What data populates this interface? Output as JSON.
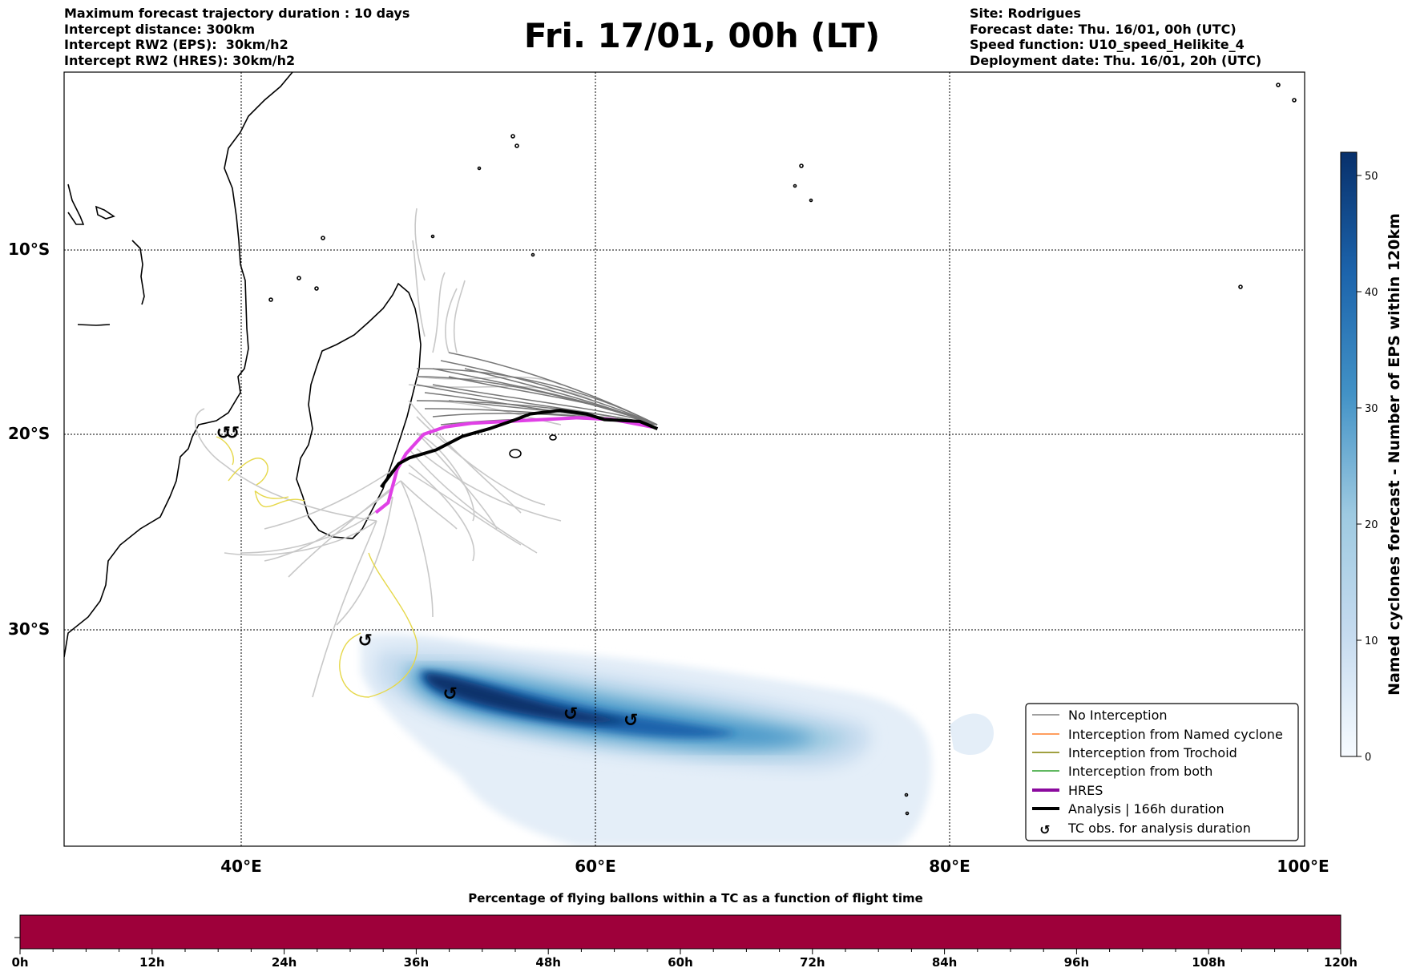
{
  "header": {
    "left": [
      "Maximum forecast trajectory duration : 10 days",
      "Intercept distance: 300km",
      "Intercept RW2 (EPS):  30km/h2",
      "Intercept RW2 (HRES): 30km/h2"
    ],
    "title": "Fri. 17/01, 00h (LT)",
    "right": [
      "Site: Rodrigues",
      "Forecast date: Thu. 16/01, 00h (UTC)",
      "Speed function: U10_speed_Helikite_4",
      "Deployment date: Thu. 16/01, 20h (UTC)"
    ]
  },
  "map": {
    "lat_labels": [
      "10°S",
      "20°S",
      "30°S"
    ],
    "lon_labels": [
      "40°E",
      "60°E",
      "80°E",
      "100°E"
    ],
    "extent": {
      "lon_min": 30,
      "lon_max": 100,
      "lat_min": -43,
      "lat_max": -0.5
    },
    "gridlines": true,
    "analysis_track": [
      [
        47.9,
        -22.7
      ],
      [
        48.9,
        -21.5
      ],
      [
        49.5,
        -21.2
      ],
      [
        51.0,
        -20.8
      ],
      [
        52.5,
        -20.1
      ],
      [
        54.0,
        -19.7
      ],
      [
        55.5,
        -19.2
      ],
      [
        56.3,
        -18.9
      ],
      [
        58.0,
        -18.7
      ],
      [
        59.5,
        -18.9
      ],
      [
        60.5,
        -19.2
      ],
      [
        62.5,
        -19.3
      ],
      [
        63.5,
        -19.7
      ]
    ],
    "hres_track": [
      [
        47.6,
        -24.0
      ],
      [
        48.3,
        -23.5
      ],
      [
        48.8,
        -21.8
      ],
      [
        49.3,
        -21.0
      ],
      [
        50.3,
        -20.0
      ],
      [
        51.5,
        -19.6
      ],
      [
        53.0,
        -19.4
      ],
      [
        55.0,
        -19.3
      ],
      [
        57.0,
        -19.2
      ],
      [
        59.0,
        -19.1
      ],
      [
        61.0,
        -19.2
      ],
      [
        63.2,
        -19.6
      ]
    ],
    "tc_obs_points": [
      [
        39.0,
        -19.9
      ],
      [
        39.5,
        -19.9
      ],
      [
        47.0,
        -30.6
      ],
      [
        51.8,
        -33.8
      ],
      [
        58.6,
        -35.0
      ],
      [
        62.0,
        -35.4
      ]
    ]
  },
  "legend": {
    "items": [
      {
        "label": "No Interception",
        "color": "#808080"
      },
      {
        "label": "Interception from Named cyclone",
        "color": "#ff7f2a"
      },
      {
        "label": "Interception from Trochoid",
        "color": "#808000"
      },
      {
        "label": "Interception from both",
        "color": "#2ca02c"
      },
      {
        "label": "HRES",
        "color": "#8b0a9e"
      },
      {
        "label": "Analysis | 166h duration",
        "color": "#000000"
      },
      {
        "label": "TC obs. for analysis duration",
        "icon": "cyclone-icon"
      }
    ],
    "location": "lower-right"
  },
  "colorbar_right": {
    "label": "Named cyclones forecast - Number of EPS within 120km",
    "ticks": [
      "0",
      "10",
      "20",
      "30",
      "40",
      "50"
    ],
    "min": 0,
    "max": 52,
    "colormap": "Blues"
  },
  "colorbar_bottom": {
    "title": "Percentage of flying ballons within a TC as a function of flight time",
    "ticks": [
      "0h",
      "12h",
      "24h",
      "36h",
      "48h",
      "60h",
      "72h",
      "84h",
      "96h",
      "108h",
      "120h"
    ],
    "fill_color": "#9e003a"
  }
}
